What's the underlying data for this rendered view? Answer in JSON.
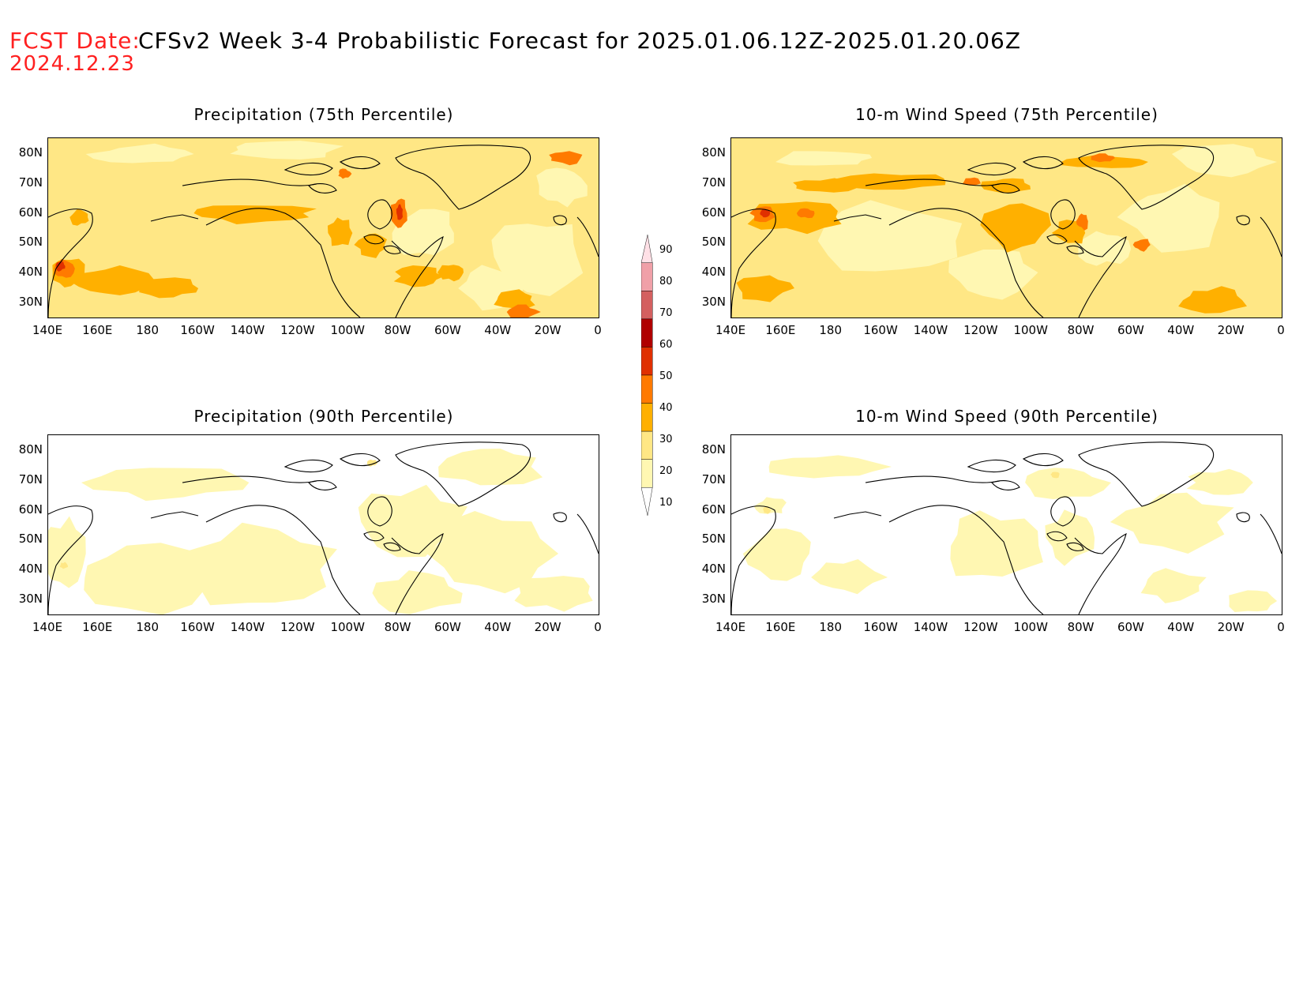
{
  "header": {
    "fcst_label": "FCST Date:",
    "fcst_date": "2024.12.23",
    "title": "CFSv2 Week 3-4 Probabilistic Forecast for 2025.01.06.12Z-2025.01.20.06Z"
  },
  "panels": [
    {
      "title": "Precipitation (75th Percentile)"
    },
    {
      "title": "10-m Wind Speed (75th Percentile)"
    },
    {
      "title": "Precipitation (90th Percentile)"
    },
    {
      "title": "10-m Wind Speed (90th Percentile)"
    }
  ],
  "axes": {
    "lat_ticks": [
      "80N",
      "70N",
      "60N",
      "50N",
      "40N",
      "30N"
    ],
    "lon_ticks": [
      "140E",
      "160E",
      "180",
      "160W",
      "140W",
      "120W",
      "100W",
      "80W",
      "60W",
      "40W",
      "20W",
      "0"
    ]
  },
  "colorbar": {
    "labels": [
      "90",
      "80",
      "70",
      "60",
      "50",
      "40",
      "30",
      "20",
      "10"
    ],
    "colors": {
      "c10": "#fff7b2",
      "c20": "#ffe785",
      "c30": "#ffb000",
      "c40": "#ff7a00",
      "c50": "#e03000",
      "c60": "#b00000",
      "c70": "#d46060",
      "c80": "#f0a0a8",
      "c90": "#ffe0e6"
    }
  }
}
